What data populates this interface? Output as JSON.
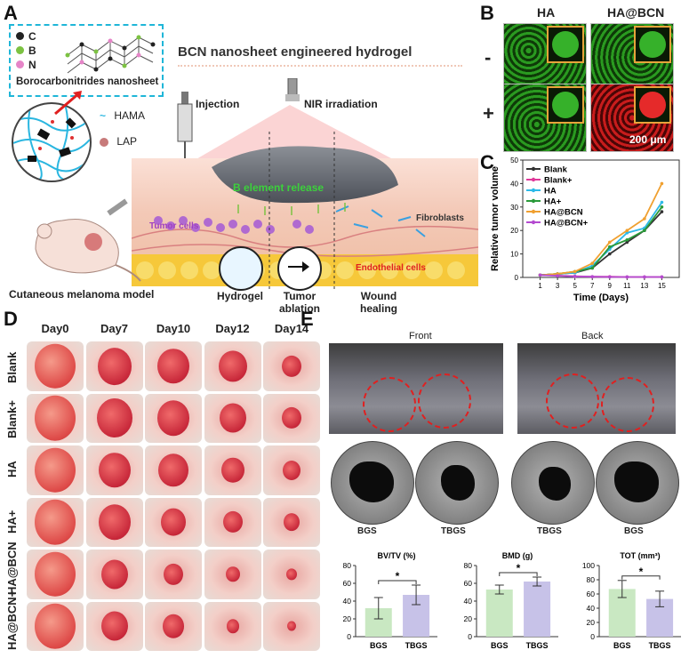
{
  "panelA": {
    "letter": "A",
    "title": "BCN nanosheet engineered hydrogel",
    "legend_C": "C",
    "legend_B": "B",
    "legend_N": "N",
    "nanosheet_label": "Borocarbonitrides nanosheet",
    "hama": "HAMA",
    "lap": "LAP",
    "injection": "Injection",
    "nir": "NIR irradiation",
    "b_release": "B element release",
    "tumor_cells": "Tumor cells",
    "fibroblasts": "Fibroblasts",
    "endothelial": "Endothelial cells",
    "model": "Cutaneous melanoma model",
    "hydrogel": "Hydrogel",
    "tumor_ablation": "Tumor\nablation",
    "wound_healing": "Wound\nhealing",
    "colors": {
      "C": "#222222",
      "B": "#7cc242",
      "N": "#e685c8",
      "dashbox": "#1fb6d8"
    }
  },
  "panelB": {
    "letter": "B",
    "col1": "HA",
    "col2": "HA@BCN",
    "row_minus": "-",
    "row_plus": "+",
    "scale": "200 μm"
  },
  "panelC": {
    "letter": "C"
  },
  "chart_data": [
    {
      "type": "line",
      "panel": "C",
      "title": "",
      "xlabel": "Time (Days)",
      "ylabel": "Relative tumor volume",
      "x": [
        1,
        3,
        5,
        7,
        9,
        11,
        13,
        15
      ],
      "xticks": [
        "1",
        "3",
        "5",
        "7",
        "9",
        "11",
        "13",
        "15"
      ],
      "yticks": [
        "0",
        "10",
        "20",
        "30",
        "40",
        "50"
      ],
      "ylim": [
        0,
        50
      ],
      "xlim": [
        -1,
        17
      ],
      "series": [
        {
          "name": "Blank",
          "color": "#333333",
          "values": [
            1,
            1.5,
            2,
            4,
            10,
            15,
            20,
            28
          ]
        },
        {
          "name": "Blank+",
          "color": "#e0399a",
          "values": [
            1,
            0.8,
            0.5,
            0.3,
            0.3,
            0.2,
            0.2,
            0.2
          ]
        },
        {
          "name": "HA",
          "color": "#2db9e8",
          "values": [
            1,
            1.5,
            2,
            5,
            12,
            19,
            21,
            32
          ]
        },
        {
          "name": "HA+",
          "color": "#2a9a3a",
          "values": [
            1,
            1.5,
            2.5,
            4,
            13,
            16,
            20,
            30
          ]
        },
        {
          "name": "HA@BCN",
          "color": "#f0a030",
          "values": [
            1,
            1.5,
            2.5,
            6,
            15,
            20,
            25,
            40
          ]
        },
        {
          "name": "HA@BCN+",
          "color": "#b44ad0",
          "values": [
            1,
            0.7,
            0.4,
            0.3,
            0.2,
            0.2,
            0.2,
            0.2
          ]
        }
      ]
    },
    {
      "type": "bar",
      "panel": "E1",
      "title": "BV/TV (%)",
      "categories": [
        "BGS",
        "TBGS"
      ],
      "values": [
        32,
        47
      ],
      "errors": [
        12,
        11
      ],
      "yticks": [
        "0",
        "20",
        "40",
        "60",
        "80"
      ],
      "ylim": [
        0,
        80
      ],
      "significance": "*",
      "colors": [
        "#c9e8c2",
        "#c7c2e8"
      ]
    },
    {
      "type": "bar",
      "panel": "E2",
      "title": "BMD (g)",
      "categories": [
        "BGS",
        "TBGS"
      ],
      "values": [
        53,
        62
      ],
      "errors": [
        5,
        5
      ],
      "yticks": [
        "0",
        "20",
        "40",
        "60",
        "80"
      ],
      "ylim": [
        0,
        80
      ],
      "significance": "*",
      "colors": [
        "#c9e8c2",
        "#c7c2e8"
      ]
    },
    {
      "type": "bar",
      "panel": "E3",
      "title": "TOT (mm³)",
      "categories": [
        "BGS",
        "TBGS"
      ],
      "values": [
        67,
        53
      ],
      "errors": [
        12,
        11
      ],
      "yticks": [
        "0",
        "20",
        "40",
        "60",
        "80",
        "100"
      ],
      "ylim": [
        0,
        100
      ],
      "significance": "*",
      "colors": [
        "#c9e8c2",
        "#c7c2e8"
      ]
    }
  ],
  "panelD": {
    "letter": "D",
    "days": [
      "Day0",
      "Day7",
      "Day10",
      "Day12",
      "Day14"
    ],
    "groups": [
      "Blank",
      "Blank+",
      "HA",
      "HA+",
      "HA@BCN",
      "HA@BCN+"
    ]
  },
  "panelE": {
    "letter": "E",
    "front": "Front",
    "back": "Back",
    "circle_labels": [
      "BGS",
      "TBGS",
      "TBGS",
      "BGS"
    ]
  }
}
